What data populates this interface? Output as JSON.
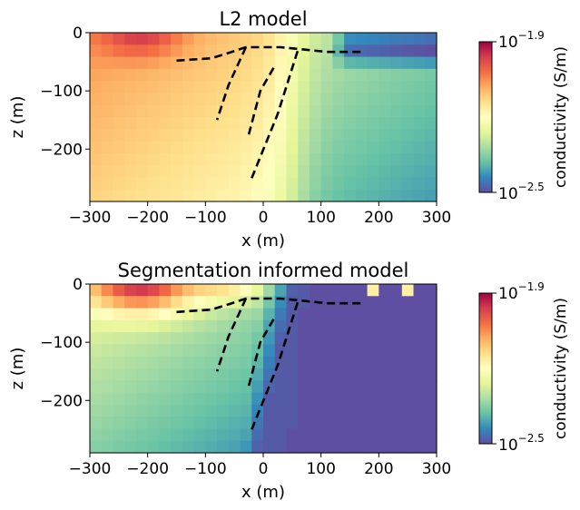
{
  "chart_data": [
    {
      "type": "heatmap",
      "title": "L2 model",
      "xlabel": "x (m)",
      "ylabel": "z (m)",
      "xlim": [
        -300,
        300
      ],
      "ylim": [
        -290,
        0
      ],
      "x_ticks": [
        -300,
        -200,
        -100,
        0,
        100,
        200,
        300
      ],
      "x_tick_labels": [
        "−300",
        "−200",
        "−100",
        "0",
        "100",
        "200",
        "300"
      ],
      "y_ticks": [
        0,
        -100,
        -200
      ],
      "y_tick_labels": [
        "0",
        "−100",
        "−200"
      ],
      "colormap": "Spectral_r",
      "colorbar": {
        "label": "conductivity (S/m)",
        "min_log10": -2.5,
        "max_log10": -1.9,
        "top_label": {
          "base": "10",
          "exp": "−1.9"
        },
        "bottom_label": {
          "base": "10",
          "exp": "−2.5"
        }
      },
      "dashed_lines": [
        {
          "x": [
            -150,
            -90,
            -60,
            -30,
            30,
            80,
            110,
            170
          ],
          "y": [
            -48,
            -44,
            -35,
            -25,
            -25,
            -30,
            -33,
            -33
          ]
        },
        {
          "x": [
            -30,
            -60,
            -80
          ],
          "y": [
            -25,
            -90,
            -150
          ]
        },
        {
          "x": [
            -25,
            -5,
            20
          ],
          "y": [
            -175,
            -100,
            -57
          ]
        },
        {
          "x": [
            -20,
            25,
            60
          ],
          "y": [
            -250,
            -140,
            -30
          ]
        }
      ]
    },
    {
      "type": "heatmap",
      "title": "Segmentation informed model",
      "xlabel": "x (m)",
      "ylabel": "z (m)",
      "xlim": [
        -300,
        300
      ],
      "ylim": [
        -290,
        0
      ],
      "x_ticks": [
        -300,
        -200,
        -100,
        0,
        100,
        200,
        300
      ],
      "x_tick_labels": [
        "−300",
        "−200",
        "−100",
        "0",
        "100",
        "200",
        "300"
      ],
      "y_ticks": [
        0,
        -100,
        -200
      ],
      "y_tick_labels": [
        "0",
        "−100",
        "−200"
      ],
      "colormap": "Spectral_r",
      "colorbar": {
        "label": "conductivity (S/m)",
        "min_log10": -2.5,
        "max_log10": -1.9,
        "top_label": {
          "base": "10",
          "exp": "−1.9"
        },
        "bottom_label": {
          "base": "10",
          "exp": "−2.5"
        }
      },
      "dashed_lines": [
        {
          "x": [
            -150,
            -90,
            -60,
            -30,
            30,
            80,
            110,
            170
          ],
          "y": [
            -48,
            -44,
            -35,
            -25,
            -25,
            -30,
            -33,
            -33
          ]
        },
        {
          "x": [
            -30,
            -60,
            -80
          ],
          "y": [
            -25,
            -90,
            -150
          ]
        },
        {
          "x": [
            -25,
            -5,
            20
          ],
          "y": [
            -175,
            -100,
            -57
          ]
        },
        {
          "x": [
            -20,
            25,
            60
          ],
          "y": [
            -250,
            -140,
            -30
          ]
        }
      ]
    }
  ]
}
